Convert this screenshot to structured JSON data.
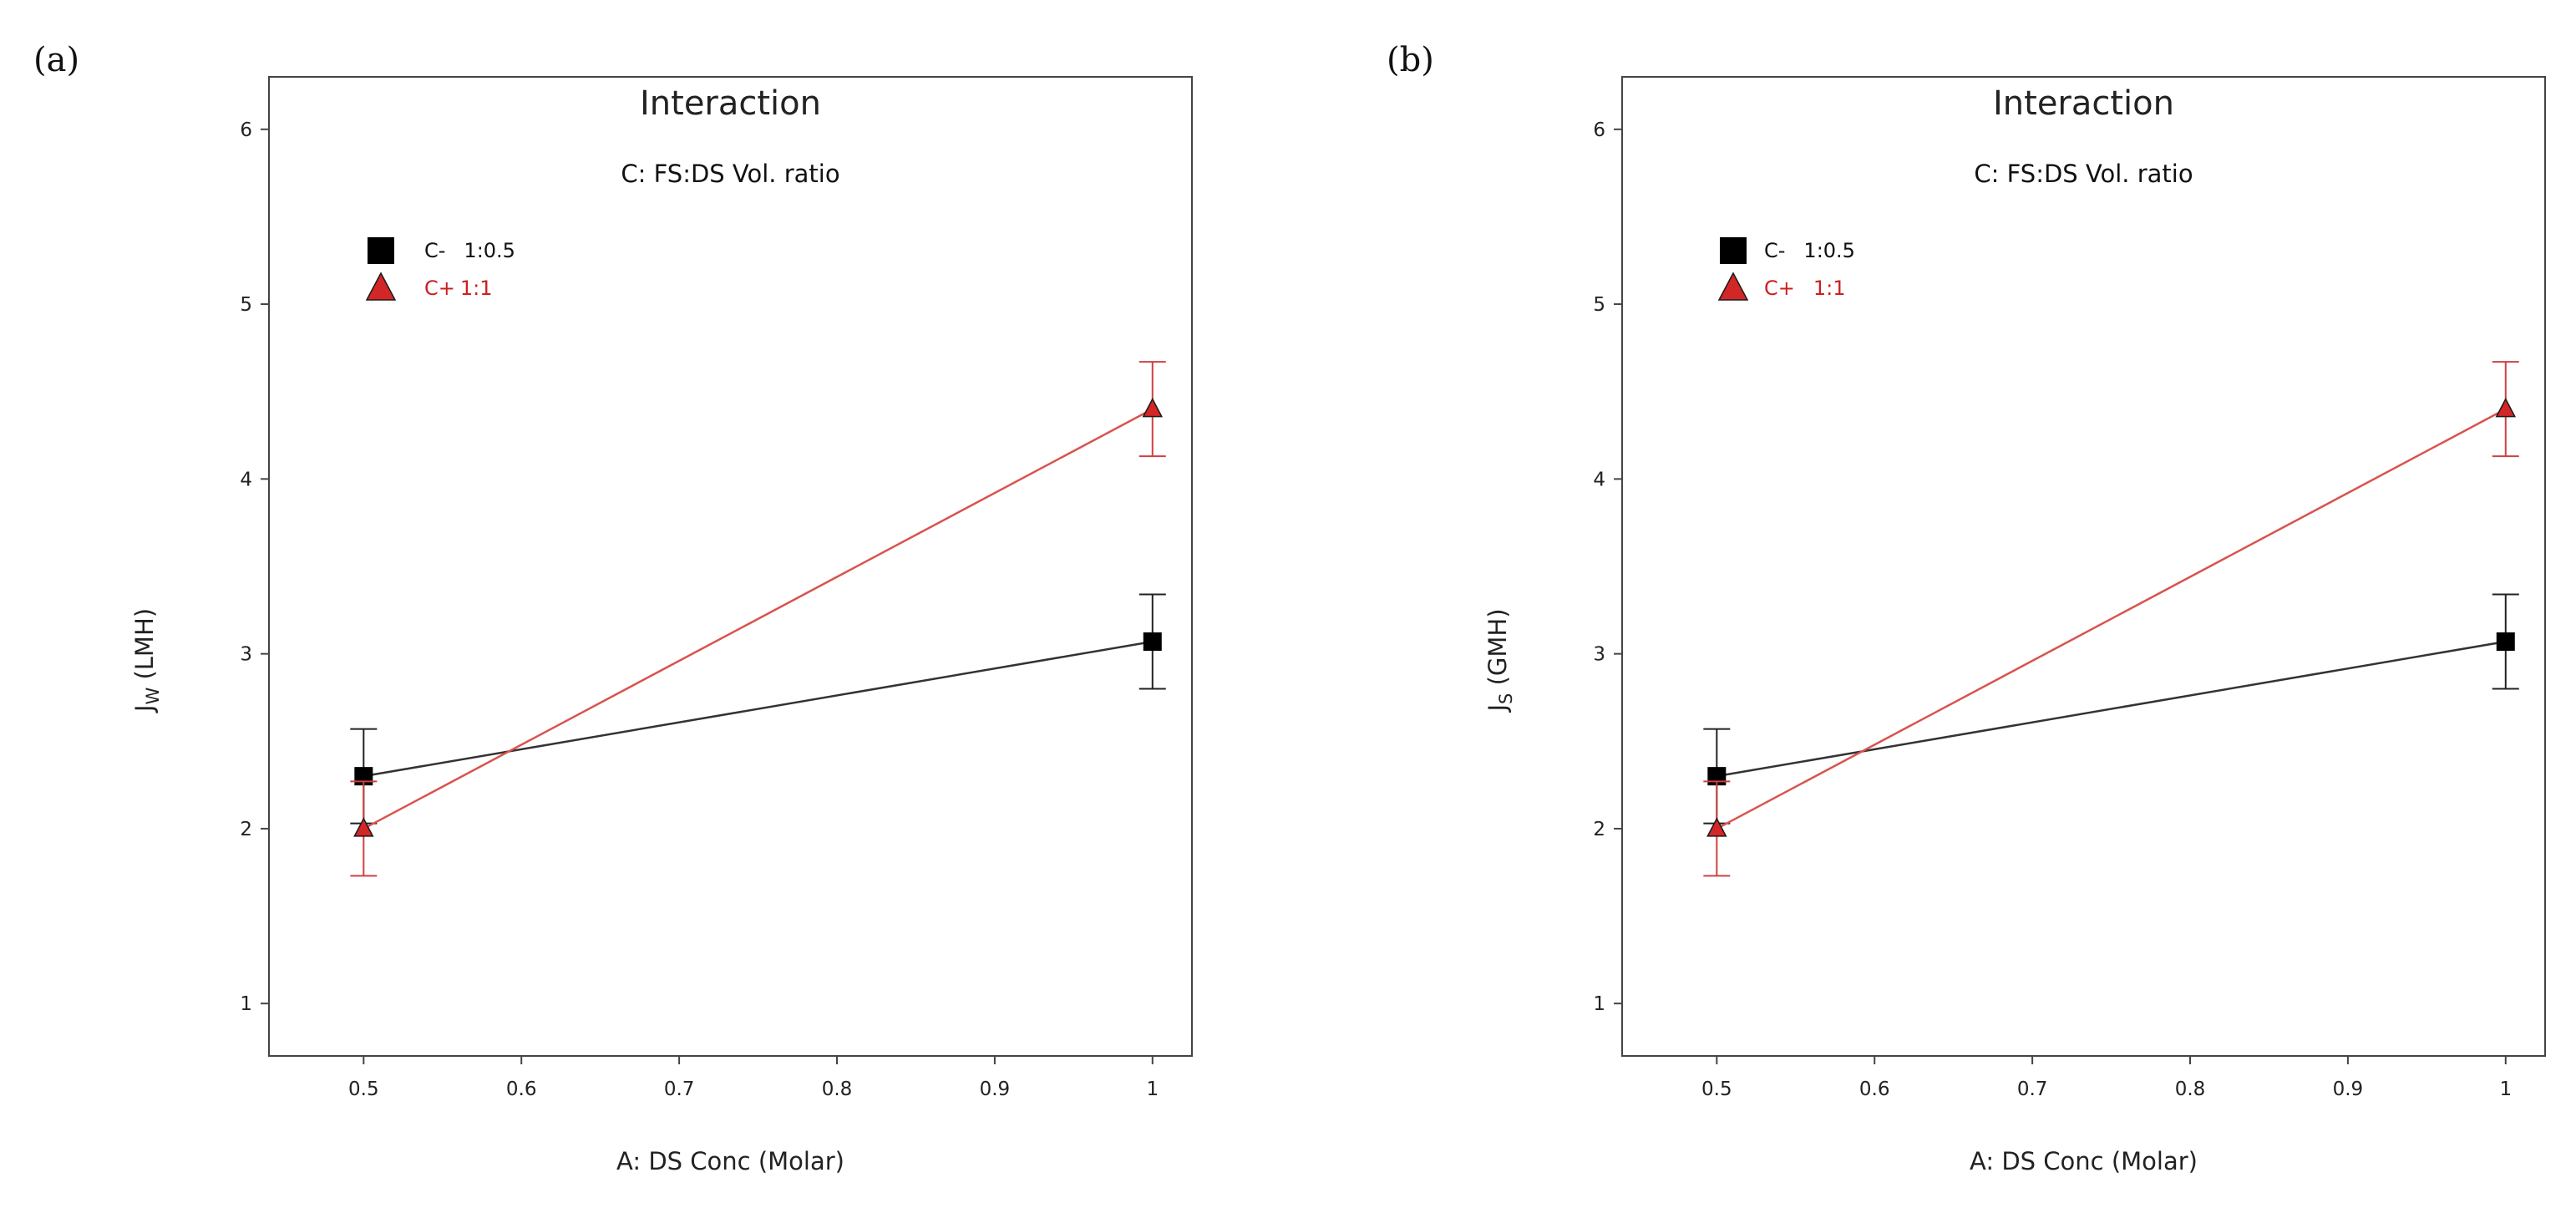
{
  "chart_data": [
    {
      "type": "line",
      "panel_label": "(a)",
      "title": "Interaction",
      "xlabel": "A: DS Conc (Molar)",
      "ylabel_main": "J",
      "ylabel_sub": "W",
      "ylabel_unit": " (LMH)",
      "xlim": [
        0.44,
        1.025
      ],
      "ylim": [
        0.7,
        6.3
      ],
      "xticks": [
        "0.5",
        "0.6",
        "0.7",
        "0.8",
        "0.9",
        "1"
      ],
      "yticks": [
        "1",
        "2",
        "3",
        "4",
        "5",
        "6"
      ],
      "grid": false,
      "legend": {
        "title": "C: FS:DS Vol. ratio",
        "placement": "top-left"
      },
      "series": [
        {
          "name": "C-",
          "label": "1:0.5",
          "marker": "square",
          "color": "#000000",
          "line_color": "#333333",
          "x": [
            0.5,
            1.0
          ],
          "y": [
            2.3,
            3.07
          ],
          "err_low": [
            2.03,
            2.8
          ],
          "err_high": [
            2.57,
            3.34
          ]
        },
        {
          "name": "C+",
          "label": "1:1",
          "marker": "triangle",
          "color": "#cc1f1f",
          "line_color": "#d9534f",
          "x": [
            0.5,
            1.0
          ],
          "y": [
            2.0,
            4.4
          ],
          "err_low": [
            1.73,
            4.13
          ],
          "err_high": [
            2.27,
            4.67
          ]
        }
      ]
    },
    {
      "type": "line",
      "panel_label": "(b)",
      "title": "Interaction",
      "xlabel": "A: DS Conc (Molar)",
      "ylabel_main": "J",
      "ylabel_sub": "S",
      "ylabel_unit": " (GMH)",
      "xlim": [
        0.44,
        1.025
      ],
      "ylim": [
        0.7,
        6.3
      ],
      "xticks": [
        "0.5",
        "0.6",
        "0.7",
        "0.8",
        "0.9",
        "1"
      ],
      "yticks": [
        "1",
        "2",
        "3",
        "4",
        "5",
        "6"
      ],
      "grid": false,
      "legend": {
        "title": "C: FS:DS Vol. ratio",
        "placement": "top-left"
      },
      "series": [
        {
          "name": "C-",
          "label": "1:0.5",
          "marker": "square",
          "color": "#000000",
          "line_color": "#333333",
          "x": [
            0.5,
            1.0
          ],
          "y": [
            2.3,
            3.07
          ],
          "err_low": [
            2.03,
            2.8
          ],
          "err_high": [
            2.57,
            3.34
          ]
        },
        {
          "name": "C+",
          "label": "1:1",
          "marker": "triangle",
          "color": "#cc1f1f",
          "line_color": "#d9534f",
          "x": [
            0.5,
            1.0
          ],
          "y": [
            2.0,
            4.4
          ],
          "err_low": [
            1.73,
            4.13
          ],
          "err_high": [
            2.27,
            4.67
          ]
        }
      ]
    }
  ]
}
